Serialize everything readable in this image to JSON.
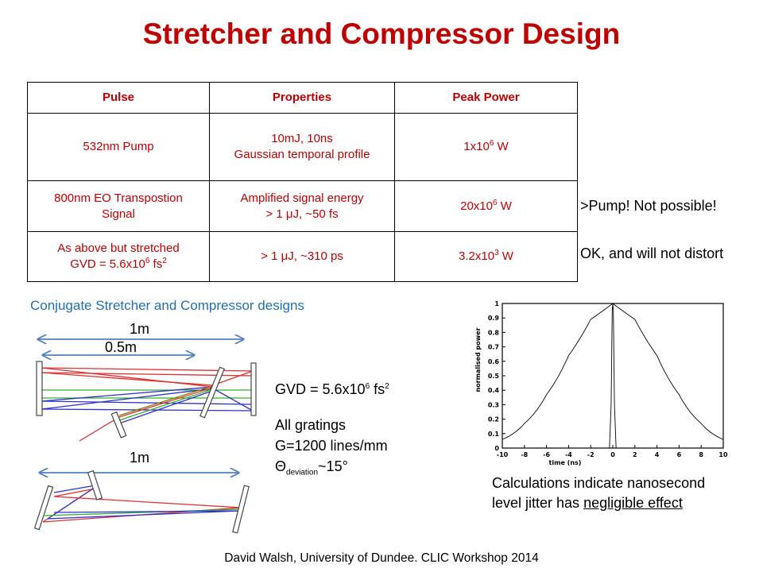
{
  "title": "Stretcher and Compressor Design",
  "table": {
    "headers": [
      "Pulse",
      "Properties",
      "Peak Power"
    ],
    "rows": [
      {
        "pulse": "532nm Pump",
        "prop1": "10mJ, 10ns",
        "prop2": "Gaussian temporal profile",
        "power_base": "1x10",
        "power_exp": "6",
        "power_unit": " W"
      },
      {
        "pulse1": "800nm EO Transpostion",
        "pulse2": "Signal",
        "prop1": "Amplified signal energy",
        "prop2": "> 1 μJ, ~50 fs",
        "power_base": "20x10",
        "power_exp": "6",
        "power_unit": " W"
      },
      {
        "pulse1": "As above but stretched",
        "pulse2_base": "GVD = 5.6x10",
        "pulse2_exp": "6",
        "pulse2_mid": " fs",
        "pulse2_exp2": "2",
        "prop": "> 1 μJ, ~310 ps",
        "power_base": "3.2x10",
        "power_exp": "3",
        "power_unit": " W"
      }
    ]
  },
  "notes": {
    "row2": ">Pump! Not possible!",
    "row3": "OK, and will not distort"
  },
  "subheading": "Conjugate Stretcher and Compressor designs",
  "diagram": {
    "label_1m_top": "1m",
    "label_05m": "0.5m",
    "label_1m_bottom": "1m"
  },
  "info": {
    "gvd_base": "GVD = 5.6x10",
    "gvd_exp": "6",
    "gvd_mid": " fs",
    "gvd_exp2": "2",
    "gratings_line1": "All gratings",
    "gratings_line2": "G=1200 lines/mm",
    "theta_symbol": "Θ",
    "theta_sub": "deviation",
    "theta_value": "~15°"
  },
  "caption": {
    "line1": "Calculations indicate nanosecond",
    "line2_prefix": "level jitter has ",
    "line2_underlined": "negligible effect"
  },
  "footer": "David Walsh, University of Dundee.  CLIC Workshop 2014",
  "chart_data": {
    "type": "line",
    "xlabel": "time (ns)",
    "ylabel": "normalised power",
    "xlim": [
      -10,
      10
    ],
    "ylim": [
      0,
      1
    ],
    "xticks": [
      "-10",
      "-8",
      "-6",
      "-4",
      "-2",
      "0",
      "2",
      "4",
      "6",
      "8",
      "10"
    ],
    "yticks": [
      "0",
      "0.1",
      "0.2",
      "0.3",
      "0.4",
      "0.5",
      "0.6",
      "0.7",
      "0.8",
      "0.9",
      "1"
    ],
    "series": [
      {
        "x": [
          -10,
          -8,
          -6,
          -4,
          -2,
          0,
          2,
          4,
          6,
          8,
          10
        ],
        "values": [
          0.06,
          0.17,
          0.37,
          0.64,
          0.89,
          1.0,
          0.89,
          0.64,
          0.37,
          0.17,
          0.06
        ]
      },
      {
        "x": [
          -10,
          -0.3,
          -0.15,
          -0.05,
          0,
          0.05,
          0.15,
          0.3,
          10
        ],
        "values": [
          0,
          0,
          0.3,
          0.95,
          1.0,
          0.95,
          0.3,
          0,
          0
        ]
      }
    ],
    "grid": false
  }
}
